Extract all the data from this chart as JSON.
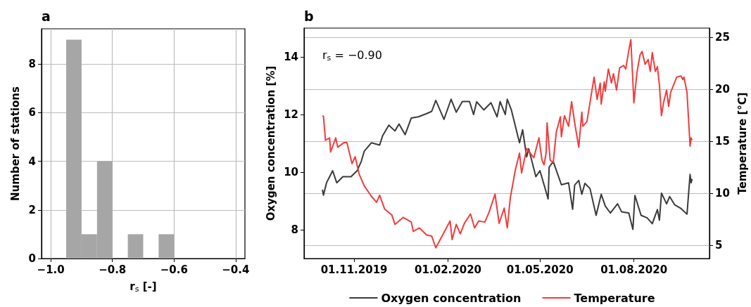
{
  "chart_data": [
    {
      "type": "histogram",
      "title": "a",
      "xlabel": "r$_{s}$ [-]",
      "ylabel": "Number of stations",
      "color": "#a6a6a6",
      "bins": [
        -0.95,
        -0.9,
        -0.85,
        -0.8,
        -0.75,
        -0.7,
        -0.65,
        -0.6
      ],
      "values": [
        9,
        1,
        4,
        0,
        1,
        0,
        1
      ],
      "xlim": [
        -1.03,
        -0.37
      ],
      "xticks": [
        {
          "value": -1.0,
          "label": "−1.0"
        },
        {
          "value": -0.8,
          "label": "−0.8"
        },
        {
          "value": -0.6,
          "label": "−0.6"
        },
        {
          "value": -0.4,
          "label": "−0.4"
        }
      ],
      "ylim": [
        0,
        9.45
      ],
      "yticks": [
        0,
        2,
        4,
        6,
        8
      ],
      "grid": true
    },
    {
      "type": "line",
      "title": "b",
      "ylabel": "Oxygen concentration [%]",
      "y2label": "Temperature [°C]",
      "annotations": [
        "r$_{s}$ = −0.90"
      ],
      "xlim": [
        "2019-09-13",
        "2020-10-14"
      ],
      "xticks": [
        {
          "value": "2019-11-01",
          "label": "01.11.2019"
        },
        {
          "value": "2020-02-01",
          "label": "01.02.2020"
        },
        {
          "value": "2020-05-01",
          "label": "01.05.2020"
        },
        {
          "value": "2020-08-01",
          "label": "01.08.2020"
        }
      ],
      "ylim": [
        7,
        15
      ],
      "yticks": [
        8,
        10,
        12,
        14
      ],
      "y2lim": [
        3.7,
        25.9
      ],
      "y2ticks": [
        5,
        10,
        15,
        20,
        25
      ],
      "grid": "y2",
      "legend": "bottom",
      "series": [
        {
          "name": "Oxygen concentration",
          "color": "#3a3a3a",
          "x": [
            "2019-10-01",
            "2019-10-02",
            "2019-10-05",
            "2019-10-11",
            "2019-10-15",
            "2019-10-21",
            "2019-10-29",
            "2019-11-04",
            "2019-11-08",
            "2019-11-11",
            "2019-11-18",
            "2019-11-26",
            "2019-11-29",
            "2019-12-05",
            "2019-12-11",
            "2019-12-15",
            "2019-12-21",
            "2019-12-27",
            "2020-01-03",
            "2020-01-11",
            "2020-01-16",
            "2020-01-20",
            "2020-01-28",
            "2020-02-04",
            "2020-02-09",
            "2020-02-15",
            "2020-02-22",
            "2020-02-26",
            "2020-02-29",
            "2020-03-07",
            "2020-03-14",
            "2020-03-20",
            "2020-03-23",
            "2020-03-28",
            "2020-03-30",
            "2020-04-03",
            "2020-04-09",
            "2020-04-11",
            "2020-04-14",
            "2020-04-18",
            "2020-04-20",
            "2020-04-27",
            "2020-05-01",
            "2020-05-05",
            "2020-05-09",
            "2020-05-10",
            "2020-05-14",
            "2020-05-22",
            "2020-05-29",
            "2020-06-02",
            "2020-06-04",
            "2020-06-08",
            "2020-06-11",
            "2020-06-14",
            "2020-06-19",
            "2020-06-25",
            "2020-06-30",
            "2020-07-04",
            "2020-07-09",
            "2020-07-16",
            "2020-07-20",
            "2020-07-27",
            "2020-07-31",
            "2020-08-02",
            "2020-08-08",
            "2020-08-14",
            "2020-08-19",
            "2020-08-24",
            "2020-08-26",
            "2020-08-28",
            "2020-09-02",
            "2020-09-05",
            "2020-09-10",
            "2020-09-16",
            "2020-09-22",
            "2020-09-25",
            "2020-09-26",
            "2020-09-27"
          ],
          "values": [
            9.39,
            9.2,
            9.63,
            10.05,
            9.63,
            9.84,
            9.84,
            10.05,
            10.37,
            10.73,
            11.02,
            10.94,
            11.27,
            11.63,
            11.43,
            11.67,
            11.3,
            11.88,
            11.92,
            12.03,
            12.11,
            12.49,
            11.83,
            12.53,
            12.08,
            12.45,
            12.45,
            12.0,
            12.44,
            12.16,
            12.41,
            11.92,
            12.45,
            12.0,
            12.53,
            12.16,
            11.3,
            11.02,
            11.47,
            10.53,
            10.81,
            9.84,
            10.05,
            9.56,
            9.07,
            10.17,
            10.37,
            9.56,
            9.63,
            8.71,
            9.55,
            9.71,
            9.23,
            9.61,
            9.43,
            8.5,
            9.23,
            8.82,
            8.58,
            8.9,
            8.62,
            8.58,
            8.01,
            9.19,
            8.5,
            8.41,
            8.21,
            8.7,
            8.33,
            9.27,
            8.9,
            9.15,
            8.86,
            8.74,
            8.54,
            9.92,
            9.63,
            9.76
          ]
        },
        {
          "name": "Temperature",
          "color": "#f03c3c",
          "axis": "y2",
          "x": [
            "2019-10-01",
            "2019-10-02",
            "2019-10-04",
            "2019-10-08",
            "2019-10-09",
            "2019-10-14",
            "2019-10-16",
            "2019-10-22",
            "2019-10-25",
            "2019-10-30",
            "2019-11-02",
            "2019-11-06",
            "2019-11-11",
            "2019-11-18",
            "2019-11-23",
            "2019-11-26",
            "2019-12-01",
            "2019-12-08",
            "2019-12-11",
            "2019-12-19",
            "2019-12-27",
            "2019-12-29",
            "2020-01-04",
            "2020-01-11",
            "2020-01-16",
            "2020-01-20",
            "2020-01-28",
            "2020-02-03",
            "2020-02-05",
            "2020-02-09",
            "2020-02-13",
            "2020-02-17",
            "2020-02-23",
            "2020-02-27",
            "2020-03-02",
            "2020-03-08",
            "2020-03-12",
            "2020-03-18",
            "2020-03-22",
            "2020-03-27",
            "2020-03-30",
            "2020-04-02",
            "2020-04-07",
            "2020-04-11",
            "2020-04-13",
            "2020-04-18",
            "2020-04-25",
            "2020-04-30",
            "2020-05-03",
            "2020-05-05",
            "2020-05-07",
            "2020-05-08",
            "2020-05-11",
            "2020-05-14",
            "2020-05-17",
            "2020-05-21",
            "2020-05-22",
            "2020-05-25",
            "2020-05-29",
            "2020-06-01",
            "2020-06-04",
            "2020-06-08",
            "2020-06-11",
            "2020-06-12",
            "2020-06-16",
            "2020-06-23",
            "2020-06-26",
            "2020-06-29",
            "2020-06-30",
            "2020-07-03",
            "2020-07-04",
            "2020-07-07",
            "2020-07-10",
            "2020-07-12",
            "2020-07-15",
            "2020-07-18",
            "2020-07-22",
            "2020-07-24",
            "2020-07-27",
            "2020-07-29",
            "2020-08-01",
            "2020-08-04",
            "2020-08-07",
            "2020-08-09",
            "2020-08-12",
            "2020-08-15",
            "2020-08-17",
            "2020-08-19",
            "2020-08-22",
            "2020-08-24",
            "2020-08-26",
            "2020-08-28",
            "2020-08-30",
            "2020-09-02",
            "2020-09-04",
            "2020-09-06",
            "2020-09-12",
            "2020-09-16",
            "2020-09-18",
            "2020-09-19",
            "2020-09-22",
            "2020-09-25",
            "2020-09-26",
            "2020-09-27"
          ],
          "values": [
            17.46,
            17.4,
            15.09,
            15.32,
            13.97,
            15.32,
            14.42,
            14.86,
            14.86,
            12.84,
            13.51,
            11.82,
            10.7,
            9.69,
            9.12,
            9.8,
            8.45,
            7.89,
            6.99,
            7.66,
            7.21,
            6.31,
            6.65,
            5.97,
            5.86,
            4.73,
            6.2,
            7.32,
            5.52,
            6.99,
            6.08,
            7.09,
            8.0,
            6.65,
            7.32,
            7.21,
            8.11,
            9.91,
            7.09,
            8.56,
            6.65,
            9.57,
            12.28,
            13.85,
            11.94,
            14.3,
            13.41,
            15.32,
            13.18,
            12.73,
            13.85,
            16.78,
            13.18,
            12.95,
            15.88,
            17.35,
            15.43,
            17.46,
            16.45,
            18.81,
            16.78,
            14.42,
            17.8,
            16.45,
            16.89,
            21.18,
            19.03,
            20.61,
            18.58,
            20.72,
            19.82,
            21.96,
            20.61,
            21.51,
            19.93,
            22.07,
            22.3,
            21.96,
            23.76,
            24.78,
            18.7,
            21.62,
            23.31,
            23.65,
            22.41,
            22.86,
            21.73,
            23.54,
            21.73,
            22.19,
            20.39,
            17.46,
            18.7,
            19.93,
            18.36,
            19.71,
            21.18,
            21.29,
            20.95,
            21.18,
            19.71,
            14.53,
            15.32,
            15.09
          ]
        }
      ]
    }
  ]
}
